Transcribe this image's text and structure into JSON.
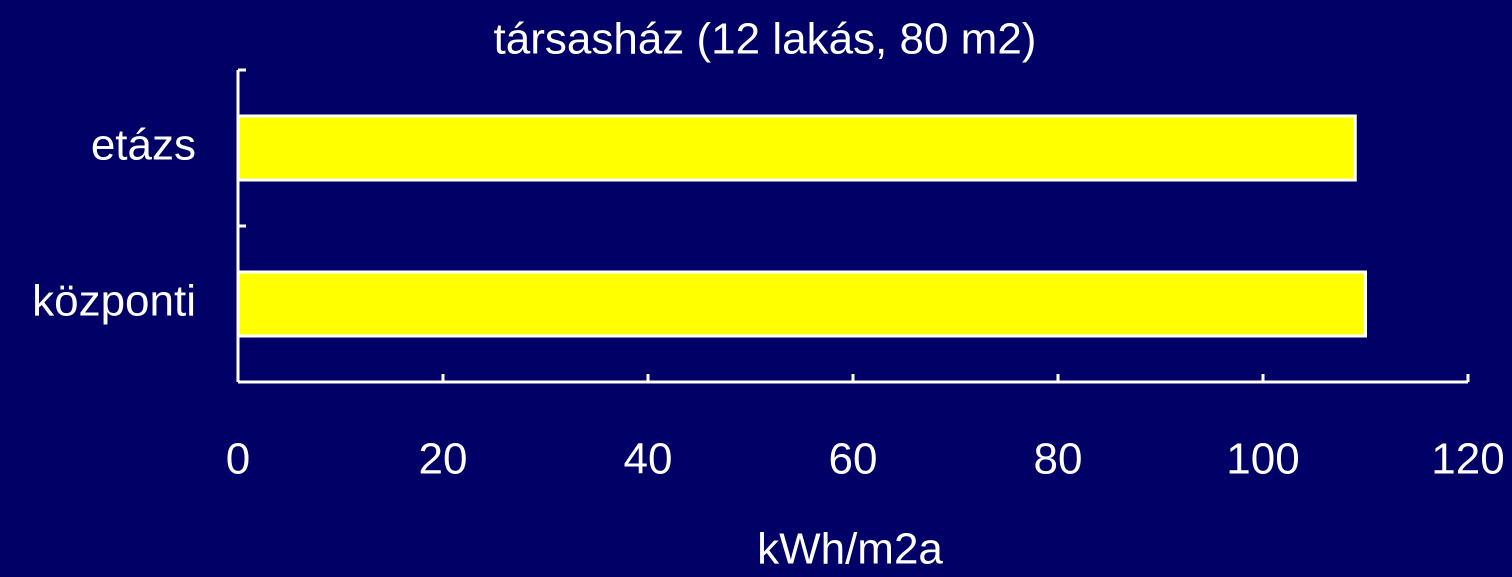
{
  "chart_data": {
    "type": "barh",
    "title": "társasház (12 lakás, 80 m2)",
    "x_label": "kWh/m2a",
    "categories": [
      "etázs",
      "központi"
    ],
    "values": [
      109,
      110
    ],
    "color": "#ffff00",
    "xlim": [
      0,
      120
    ],
    "xticks": [
      0,
      20,
      40,
      60,
      80,
      100,
      120
    ],
    "grid": false
  }
}
